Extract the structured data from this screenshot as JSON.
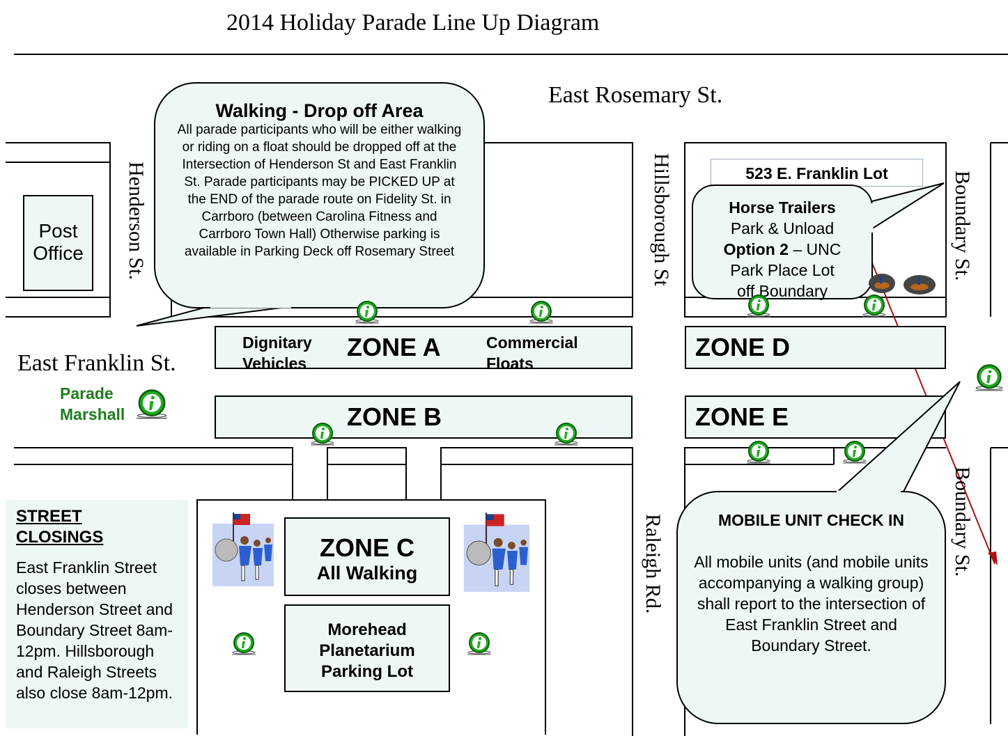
{
  "title": "2014 Holiday Parade Line Up Diagram",
  "streets": {
    "east_rosemary": "East Rosemary St.",
    "east_franklin": "East Franklin St.",
    "henderson": "Henderson St.",
    "hillsborough": "Hillsborough St",
    "boundary": "Boundary St.",
    "raleigh": "Raleigh Rd."
  },
  "post_office": {
    "line1": "Post",
    "line2": "Office"
  },
  "walking_dropoff": {
    "heading": "Walking - Drop off Area",
    "body": "All parade participants who will be either walking or riding on a float should be dropped off at the Intersection of Henderson St and East Franklin St. Parade participants may be PICKED UP at the END of the parade route on Fidelity St. in Carrboro (between Carolina Fitness and Carrboro Town Hall) Otherwise parking is available in Parking Deck off Rosemary Street"
  },
  "franklin_lot": "523 E. Franklin Lot",
  "horse_trailers": {
    "line1": "Horse Trailers",
    "line2": "Park & Unload",
    "line3_bold": "Option 2",
    "line3_rest": " – UNC",
    "line4": "Park Place Lot",
    "line5": "off Boundary"
  },
  "zones": {
    "a": "ZONE A",
    "a_left": "Dignitary Vehicles",
    "a_right": "Commercial Floats",
    "b": "ZONE B",
    "c": "ZONE C",
    "c_sub": "All Walking",
    "d": "ZONE D",
    "e": "ZONE E"
  },
  "parade_marshall": "Parade Marshall",
  "morehead": {
    "line1": "Morehead",
    "line2": "Planetarium",
    "line3": "Parking Lot"
  },
  "street_closings": {
    "heading_line1": "STREET",
    "heading_line2": "CLOSINGS",
    "body": "East Franklin Street closes between Henderson Street and Boundary Street 8am-12pm. Hillsborough and Raleigh Streets also close 8am-12pm."
  },
  "mobile_unit": {
    "heading": "MOBILE UNIT CHECK IN",
    "body": "All mobile units (and mobile units accompanying a walking group) shall report to the intersection of East Franklin Street and Boundary Street."
  },
  "colors": {
    "zone_fill": "#eef6f6",
    "info_green": "#22aa22",
    "marshall_text": "#1e7d1e",
    "arrow": "#aa1111"
  },
  "icons": [
    "info-icon",
    "marching-band-icon",
    "horse-rider-icon"
  ]
}
